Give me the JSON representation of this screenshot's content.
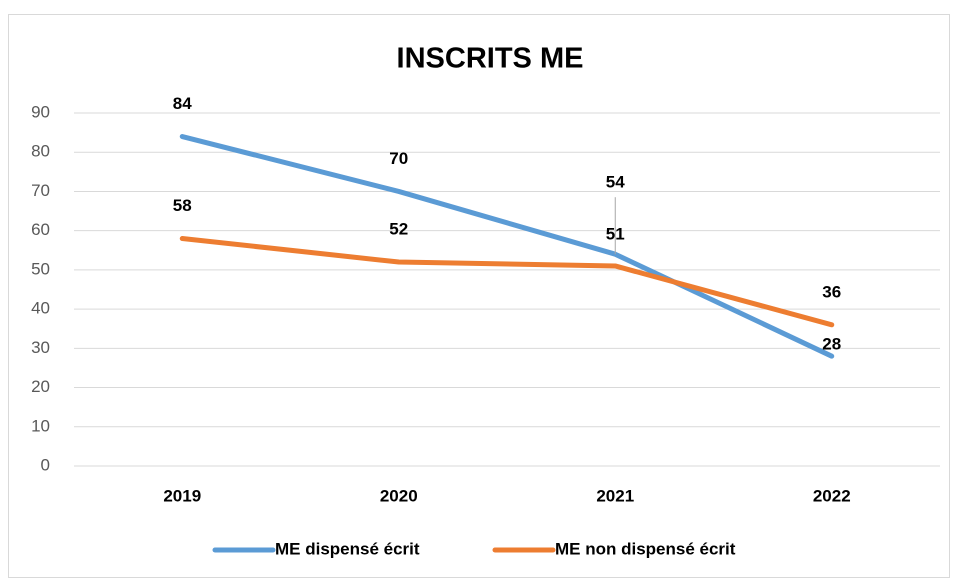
{
  "chart_data": {
    "type": "line",
    "title": "INSCRITS ME",
    "categories": [
      "2019",
      "2020",
      "2021",
      "2022"
    ],
    "series": [
      {
        "name": "ME dispensé écrit",
        "color": "#5b9bd5",
        "values": [
          84,
          70,
          54,
          28
        ]
      },
      {
        "name": "ME non dispensé écrit",
        "color": "#ed7d31",
        "values": [
          58,
          52,
          51,
          36
        ]
      }
    ],
    "ylim": [
      0,
      90
    ],
    "yticks": [
      0,
      10,
      20,
      30,
      40,
      50,
      60,
      70,
      80,
      90
    ],
    "grid": true,
    "legend": "bottom"
  }
}
